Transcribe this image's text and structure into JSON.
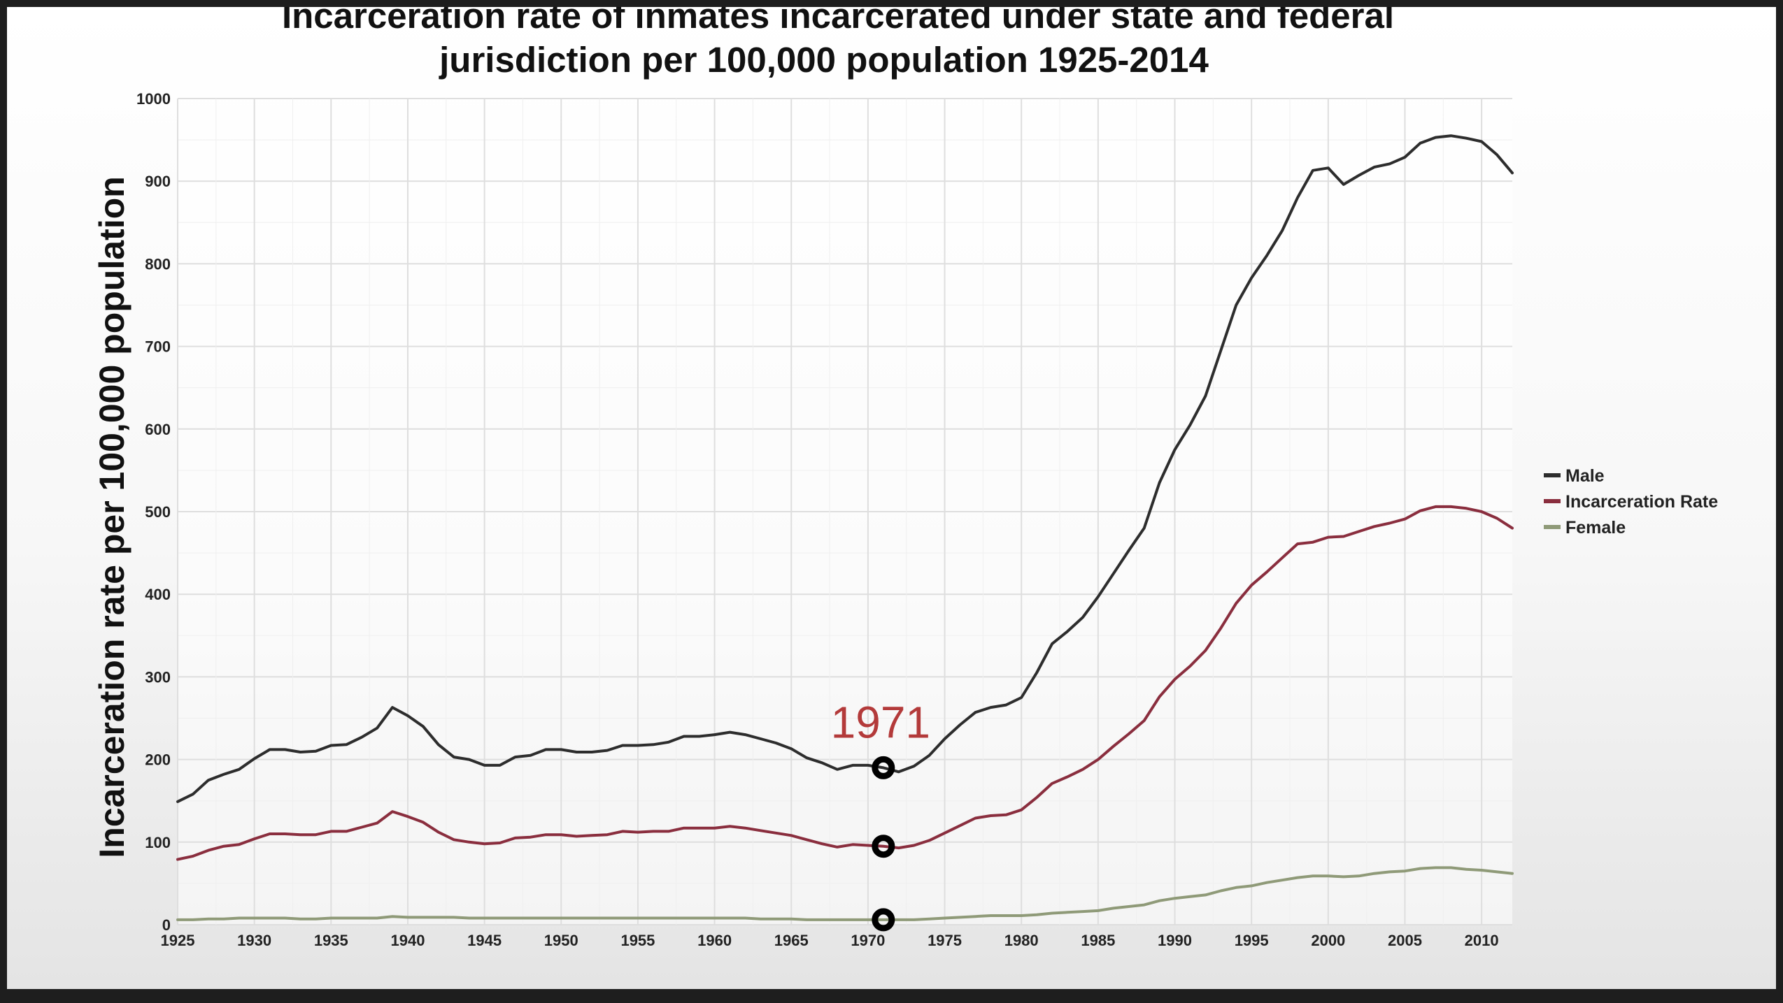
{
  "chart_data": {
    "type": "line",
    "title_lines": [
      "Incarceration rate of inmates incarcerated under state and federal",
      "jurisdiction per 100,000 population 1925-2014"
    ],
    "ylabel": "Incarceration rate per 100,000 population",
    "xlabel": "",
    "xlim": [
      1925,
      2012
    ],
    "ylim": [
      0,
      1000
    ],
    "x_ticks": [
      1925,
      1930,
      1935,
      1940,
      1945,
      1950,
      1955,
      1960,
      1965,
      1970,
      1975,
      1980,
      1985,
      1990,
      1995,
      2000,
      2005,
      2010
    ],
    "y_ticks": [
      0,
      100,
      200,
      300,
      400,
      500,
      600,
      700,
      800,
      900,
      1000
    ],
    "grid": true,
    "legend_position": "right",
    "series": [
      {
        "name": "Male",
        "color": "#2d2d2d",
        "points": [
          [
            1925,
            149
          ],
          [
            1926,
            158
          ],
          [
            1927,
            175
          ],
          [
            1928,
            182
          ],
          [
            1929,
            188
          ],
          [
            1930,
            201
          ],
          [
            1931,
            212
          ],
          [
            1932,
            212
          ],
          [
            1933,
            209
          ],
          [
            1934,
            210
          ],
          [
            1935,
            217
          ],
          [
            1936,
            218
          ],
          [
            1937,
            227
          ],
          [
            1938,
            238
          ],
          [
            1939,
            263
          ],
          [
            1940,
            253
          ],
          [
            1941,
            240
          ],
          [
            1942,
            218
          ],
          [
            1943,
            203
          ],
          [
            1944,
            200
          ],
          [
            1945,
            193
          ],
          [
            1946,
            193
          ],
          [
            1947,
            203
          ],
          [
            1948,
            205
          ],
          [
            1949,
            212
          ],
          [
            1950,
            212
          ],
          [
            1951,
            209
          ],
          [
            1952,
            209
          ],
          [
            1953,
            211
          ],
          [
            1954,
            217
          ],
          [
            1955,
            217
          ],
          [
            1956,
            218
          ],
          [
            1957,
            221
          ],
          [
            1958,
            228
          ],
          [
            1959,
            228
          ],
          [
            1960,
            230
          ],
          [
            1961,
            233
          ],
          [
            1962,
            230
          ],
          [
            1963,
            225
          ],
          [
            1964,
            220
          ],
          [
            1965,
            213
          ],
          [
            1966,
            202
          ],
          [
            1967,
            196
          ],
          [
            1968,
            188
          ],
          [
            1969,
            193
          ],
          [
            1970,
            193
          ],
          [
            1971,
            190
          ],
          [
            1972,
            185
          ],
          [
            1973,
            192
          ],
          [
            1974,
            205
          ],
          [
            1975,
            225
          ],
          [
            1976,
            242
          ],
          [
            1977,
            257
          ],
          [
            1978,
            263
          ],
          [
            1979,
            266
          ],
          [
            1980,
            275
          ],
          [
            1981,
            305
          ],
          [
            1982,
            340
          ],
          [
            1983,
            355
          ],
          [
            1984,
            372
          ],
          [
            1985,
            397
          ],
          [
            1986,
            425
          ],
          [
            1987,
            453
          ],
          [
            1988,
            480
          ],
          [
            1989,
            535
          ],
          [
            1990,
            575
          ],
          [
            1991,
            605
          ],
          [
            1992,
            640
          ],
          [
            1993,
            695
          ],
          [
            1994,
            750
          ],
          [
            1995,
            783
          ],
          [
            1996,
            810
          ],
          [
            1997,
            840
          ],
          [
            1998,
            880
          ],
          [
            1999,
            913
          ],
          [
            2000,
            916
          ],
          [
            2001,
            896
          ],
          [
            2002,
            907
          ],
          [
            2003,
            917
          ],
          [
            2004,
            921
          ],
          [
            2005,
            929
          ],
          [
            2006,
            946
          ],
          [
            2007,
            953
          ],
          [
            2008,
            955
          ],
          [
            2009,
            952
          ],
          [
            2010,
            948
          ],
          [
            2011,
            932
          ],
          [
            2012,
            910
          ]
        ]
      },
      {
        "name": "Incarceration Rate",
        "color": "#8a2e3e",
        "points": [
          [
            1925,
            79
          ],
          [
            1926,
            83
          ],
          [
            1927,
            90
          ],
          [
            1928,
            95
          ],
          [
            1929,
            97
          ],
          [
            1930,
            104
          ],
          [
            1931,
            110
          ],
          [
            1932,
            110
          ],
          [
            1933,
            109
          ],
          [
            1934,
            109
          ],
          [
            1935,
            113
          ],
          [
            1936,
            113
          ],
          [
            1937,
            118
          ],
          [
            1938,
            123
          ],
          [
            1939,
            137
          ],
          [
            1940,
            131
          ],
          [
            1941,
            124
          ],
          [
            1942,
            112
          ],
          [
            1943,
            103
          ],
          [
            1944,
            100
          ],
          [
            1945,
            98
          ],
          [
            1946,
            99
          ],
          [
            1947,
            105
          ],
          [
            1948,
            106
          ],
          [
            1949,
            109
          ],
          [
            1950,
            109
          ],
          [
            1951,
            107
          ],
          [
            1952,
            108
          ],
          [
            1953,
            109
          ],
          [
            1954,
            113
          ],
          [
            1955,
            112
          ],
          [
            1956,
            113
          ],
          [
            1957,
            113
          ],
          [
            1958,
            117
          ],
          [
            1959,
            117
          ],
          [
            1960,
            117
          ],
          [
            1961,
            119
          ],
          [
            1962,
            117
          ],
          [
            1963,
            114
          ],
          [
            1964,
            111
          ],
          [
            1965,
            108
          ],
          [
            1966,
            103
          ],
          [
            1967,
            98
          ],
          [
            1968,
            94
          ],
          [
            1969,
            97
          ],
          [
            1970,
            96
          ],
          [
            1971,
            95
          ],
          [
            1972,
            93
          ],
          [
            1973,
            96
          ],
          [
            1974,
            102
          ],
          [
            1975,
            111
          ],
          [
            1976,
            120
          ],
          [
            1977,
            129
          ],
          [
            1978,
            132
          ],
          [
            1979,
            133
          ],
          [
            1980,
            139
          ],
          [
            1981,
            154
          ],
          [
            1982,
            171
          ],
          [
            1983,
            179
          ],
          [
            1984,
            188
          ],
          [
            1985,
            200
          ],
          [
            1986,
            216
          ],
          [
            1987,
            231
          ],
          [
            1988,
            247
          ],
          [
            1989,
            276
          ],
          [
            1990,
            297
          ],
          [
            1991,
            313
          ],
          [
            1992,
            332
          ],
          [
            1993,
            359
          ],
          [
            1994,
            389
          ],
          [
            1995,
            411
          ],
          [
            1996,
            427
          ],
          [
            1997,
            444
          ],
          [
            1998,
            461
          ],
          [
            1999,
            463
          ],
          [
            2000,
            469
          ],
          [
            2001,
            470
          ],
          [
            2002,
            476
          ],
          [
            2003,
            482
          ],
          [
            2004,
            486
          ],
          [
            2005,
            491
          ],
          [
            2006,
            501
          ],
          [
            2007,
            506
          ],
          [
            2008,
            506
          ],
          [
            2009,
            504
          ],
          [
            2010,
            500
          ],
          [
            2011,
            492
          ],
          [
            2012,
            480
          ]
        ]
      },
      {
        "name": "Female",
        "color": "#8f9a78",
        "points": [
          [
            1925,
            6
          ],
          [
            1926,
            6
          ],
          [
            1927,
            7
          ],
          [
            1928,
            7
          ],
          [
            1929,
            8
          ],
          [
            1930,
            8
          ],
          [
            1931,
            8
          ],
          [
            1932,
            8
          ],
          [
            1933,
            7
          ],
          [
            1934,
            7
          ],
          [
            1935,
            8
          ],
          [
            1936,
            8
          ],
          [
            1937,
            8
          ],
          [
            1938,
            8
          ],
          [
            1939,
            10
          ],
          [
            1940,
            9
          ],
          [
            1941,
            9
          ],
          [
            1942,
            9
          ],
          [
            1943,
            9
          ],
          [
            1944,
            8
          ],
          [
            1945,
            8
          ],
          [
            1946,
            8
          ],
          [
            1947,
            8
          ],
          [
            1948,
            8
          ],
          [
            1949,
            8
          ],
          [
            1950,
            8
          ],
          [
            1951,
            8
          ],
          [
            1952,
            8
          ],
          [
            1953,
            8
          ],
          [
            1954,
            8
          ],
          [
            1955,
            8
          ],
          [
            1956,
            8
          ],
          [
            1957,
            8
          ],
          [
            1958,
            8
          ],
          [
            1959,
            8
          ],
          [
            1960,
            8
          ],
          [
            1961,
            8
          ],
          [
            1962,
            8
          ],
          [
            1963,
            7
          ],
          [
            1964,
            7
          ],
          [
            1965,
            7
          ],
          [
            1966,
            6
          ],
          [
            1967,
            6
          ],
          [
            1968,
            6
          ],
          [
            1969,
            6
          ],
          [
            1970,
            6
          ],
          [
            1971,
            6
          ],
          [
            1972,
            6
          ],
          [
            1973,
            6
          ],
          [
            1974,
            7
          ],
          [
            1975,
            8
          ],
          [
            1976,
            9
          ],
          [
            1977,
            10
          ],
          [
            1978,
            11
          ],
          [
            1979,
            11
          ],
          [
            1980,
            11
          ],
          [
            1981,
            12
          ],
          [
            1982,
            14
          ],
          [
            1983,
            15
          ],
          [
            1984,
            16
          ],
          [
            1985,
            17
          ],
          [
            1986,
            20
          ],
          [
            1987,
            22
          ],
          [
            1988,
            24
          ],
          [
            1989,
            29
          ],
          [
            1990,
            32
          ],
          [
            1991,
            34
          ],
          [
            1992,
            36
          ],
          [
            1993,
            41
          ],
          [
            1994,
            45
          ],
          [
            1995,
            47
          ],
          [
            1996,
            51
          ],
          [
            1997,
            54
          ],
          [
            1998,
            57
          ],
          [
            1999,
            59
          ],
          [
            2000,
            59
          ],
          [
            2001,
            58
          ],
          [
            2002,
            59
          ],
          [
            2003,
            62
          ],
          [
            2004,
            64
          ],
          [
            2005,
            65
          ],
          [
            2006,
            68
          ],
          [
            2007,
            69
          ],
          [
            2008,
            69
          ],
          [
            2009,
            67
          ],
          [
            2010,
            66
          ],
          [
            2011,
            64
          ],
          [
            2012,
            62
          ]
        ]
      }
    ],
    "annotation": {
      "label": "1971",
      "x": 1971,
      "color": "#b33a3a",
      "marked_values": [
        190,
        95,
        6
      ]
    }
  }
}
